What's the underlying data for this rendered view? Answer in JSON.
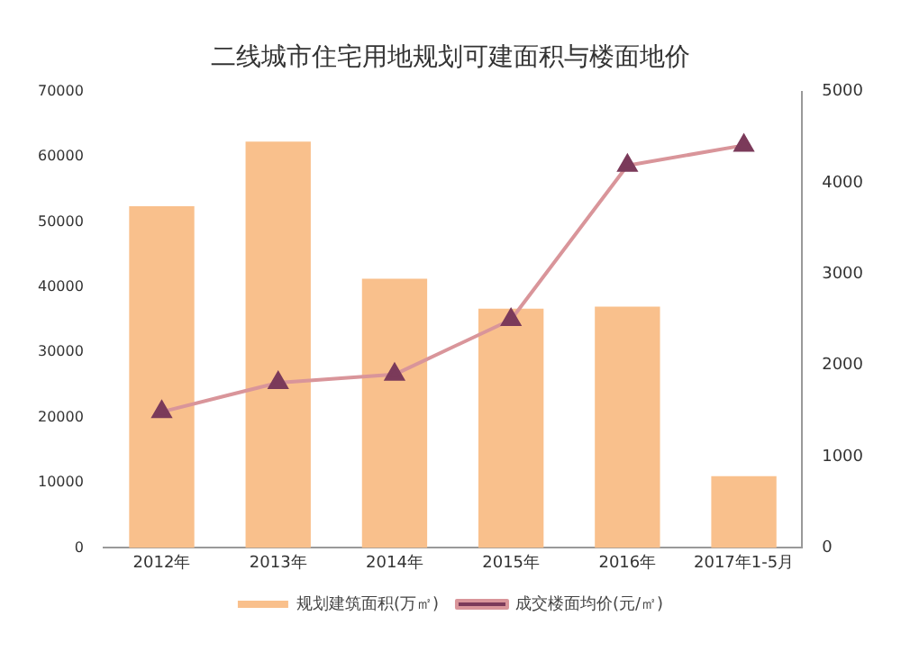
{
  "chart_data": {
    "type": "bar",
    "title": "二线城市住宅用地规划可建面积与楼面地价",
    "categories": [
      "2012年",
      "2013年",
      "2014年",
      "2015年",
      "2016年",
      "2017年1-5月"
    ],
    "series": [
      {
        "name": "规划建筑面积(万㎡)",
        "color": "#f9c08c",
        "values": [
          52400,
          62300,
          41300,
          36700,
          37000,
          11000
        ]
      },
      {
        "name": "成交楼面均价(元/㎡)",
        "type": "line",
        "axis": "y2",
        "color": "#d9959a",
        "marker": "triangle",
        "values": [
          1490,
          1810,
          1900,
          2500,
          4190,
          4410
        ]
      }
    ],
    "ylim": [
      0,
      70000
    ],
    "yticks": [
      0,
      10000,
      20000,
      30000,
      40000,
      50000,
      60000,
      70000
    ],
    "y2lim": [
      0,
      5000
    ],
    "y2ticks": [
      0,
      1000,
      2000,
      3000,
      4000,
      5000
    ],
    "grid": false,
    "legend": "bottom"
  }
}
